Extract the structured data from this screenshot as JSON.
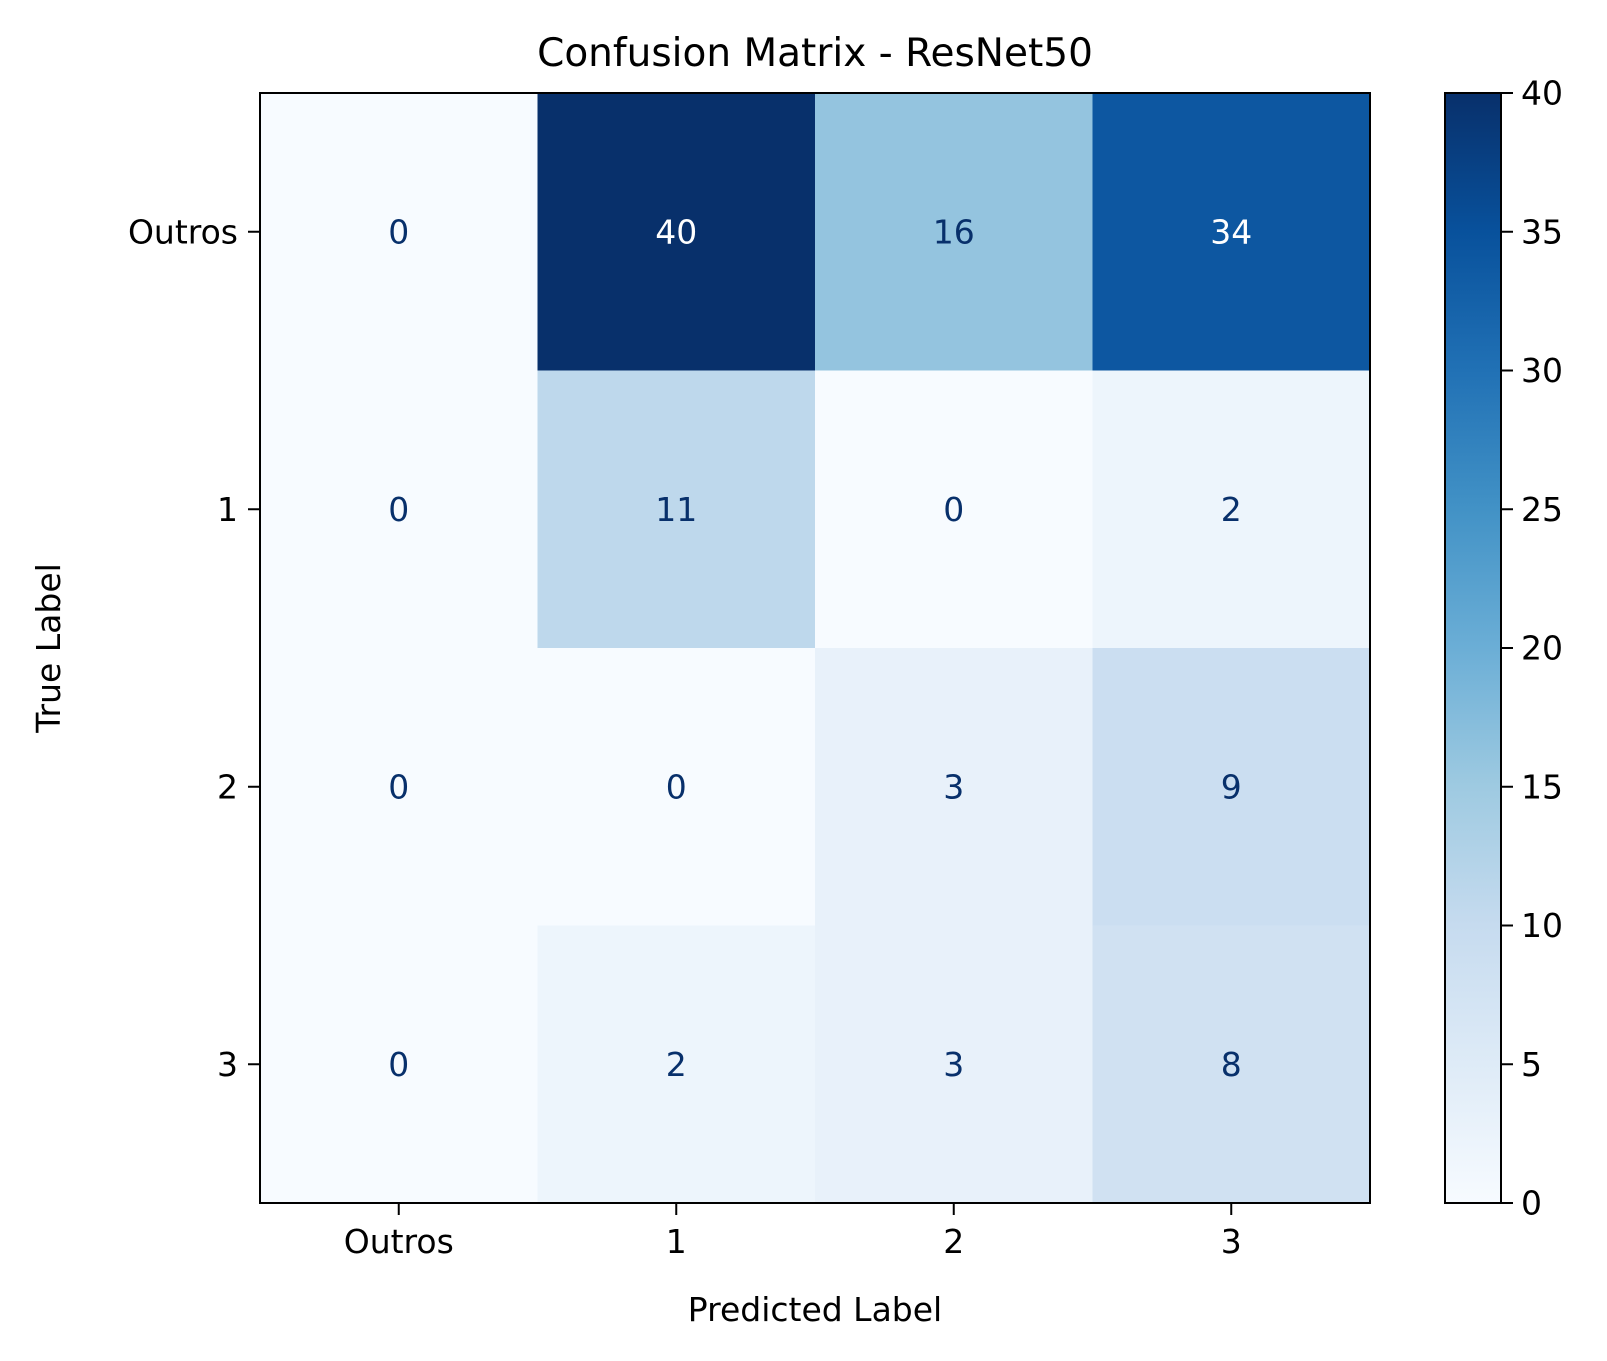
{
  "chart_data": {
    "type": "heatmap",
    "title": "Confusion Matrix - ResNet50",
    "xlabel": "Predicted Label",
    "ylabel": "True Label",
    "x_categories": [
      "Outros",
      "1",
      "2",
      "3"
    ],
    "y_categories": [
      "Outros",
      "1",
      "2",
      "3"
    ],
    "values": [
      [
        0,
        40,
        16,
        34
      ],
      [
        0,
        11,
        0,
        2
      ],
      [
        0,
        0,
        3,
        9
      ],
      [
        0,
        2,
        3,
        8
      ]
    ],
    "colormap": "Blues",
    "color_range": [
      0,
      40
    ],
    "colorbar_ticks": [
      "0",
      "5",
      "10",
      "15",
      "20",
      "25",
      "30",
      "35",
      "40"
    ],
    "text_colors": {
      "dark_cell": "#ffffff",
      "light_cell": "#08306b"
    }
  }
}
